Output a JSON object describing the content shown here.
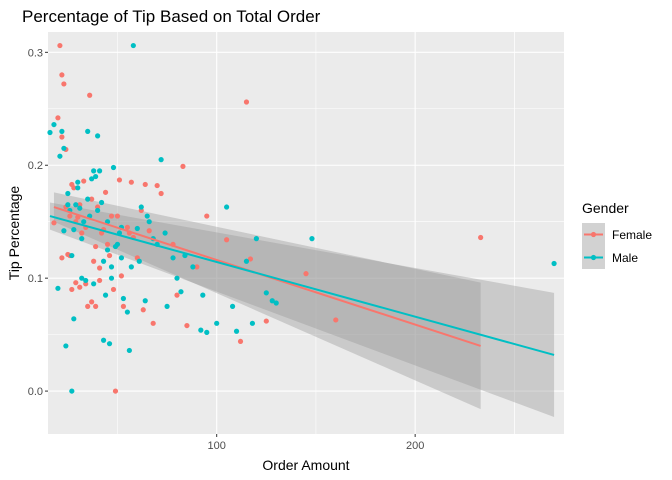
{
  "chart_data": {
    "type": "scatter",
    "title": "Percentage of Tip Based on Total Order",
    "xlabel": "Order Amount",
    "ylabel": "Tip Percentage",
    "xlim": [
      15,
      275
    ],
    "ylim": [
      -0.038,
      0.318
    ],
    "x_ticks": [
      100,
      200
    ],
    "y_ticks": [
      0.0,
      0.1,
      0.2,
      0.3
    ],
    "y_tick_labels": [
      "0.0",
      "0.1",
      "0.2",
      "0.3"
    ],
    "grid": true,
    "legend": {
      "title": "Gender",
      "placement": "right"
    },
    "colors": {
      "Female": "#F8766D",
      "Male": "#00BFC4",
      "panel": "#EBEBEB",
      "grid": "#FFFFFF",
      "band": "#999999"
    },
    "series": [
      {
        "name": "Female",
        "color": "#F8766D",
        "x": [
          18,
          20,
          21,
          22,
          22,
          23,
          24,
          25,
          26,
          27,
          27,
          28,
          29,
          30,
          31,
          32,
          33,
          34,
          35,
          36,
          37,
          38,
          39,
          40,
          41,
          42,
          44,
          45,
          46,
          47,
          48,
          50,
          52,
          53,
          55,
          57,
          58,
          60,
          62,
          64,
          66,
          68,
          72,
          78,
          83,
          85,
          95,
          105,
          112,
          115,
          117,
          125,
          145,
          160,
          233,
          22,
          24,
          26,
          29,
          31,
          34,
          37,
          39,
          41,
          43,
          49,
          51,
          56,
          63,
          70,
          80,
          90
        ],
        "y": [
          0.149,
          0.242,
          0.306,
          0.118,
          0.28,
          0.272,
          0.214,
          0.121,
          0.155,
          0.183,
          0.09,
          0.18,
          0.096,
          0.154,
          0.092,
          0.14,
          0.186,
          0.095,
          0.075,
          0.262,
          0.079,
          0.115,
          0.128,
          0.163,
          0.098,
          0.14,
          0.176,
          0.13,
          0.12,
          0.155,
          0.09,
          0.155,
          0.102,
          0.075,
          0.145,
          0.185,
          0.136,
          0.118,
          0.16,
          0.183,
          0.142,
          0.06,
          0.175,
          0.13,
          0.199,
          0.058,
          0.155,
          0.134,
          0.044,
          0.256,
          0.117,
          0.062,
          0.104,
          0.063,
          0.136,
          0.225,
          0.163,
          0.12,
          0.15,
          0.165,
          0.145,
          0.17,
          0.075,
          0.109,
          0.143,
          0.0,
          0.187,
          0.14,
          0.072,
          0.182,
          0.085,
          0.11
        ],
        "fit": {
          "x": [
            18,
            233
          ],
          "y": [
            0.163,
            0.04
          ],
          "ci_upper": [
            0.176,
            0.096
          ],
          "ci_lower": [
            0.15,
            -0.016
          ]
        }
      },
      {
        "name": "Male",
        "color": "#00BFC4",
        "x": [
          16,
          18,
          20,
          21,
          22,
          23,
          24,
          25,
          26,
          27,
          28,
          28,
          29,
          30,
          31,
          32,
          33,
          34,
          35,
          36,
          37,
          38,
          39,
          40,
          41,
          42,
          43,
          44,
          45,
          46,
          47,
          48,
          49,
          50,
          51,
          52,
          53,
          55,
          56,
          58,
          60,
          61,
          62,
          64,
          65,
          68,
          70,
          72,
          75,
          78,
          82,
          84,
          88,
          92,
          95,
          100,
          105,
          110,
          115,
          118,
          120,
          125,
          130,
          148,
          270,
          23,
          25,
          27,
          30,
          32,
          35,
          38,
          40,
          43,
          45,
          47,
          52,
          57,
          66,
          74,
          80,
          93,
          108,
          128
        ],
        "y": [
          0.229,
          0.236,
          0.091,
          0.208,
          0.23,
          0.142,
          0.04,
          0.175,
          0.16,
          0.0,
          0.064,
          0.143,
          0.165,
          0.185,
          0.162,
          0.135,
          0.15,
          0.098,
          0.23,
          0.155,
          0.188,
          0.195,
          0.19,
          0.226,
          0.195,
          0.167,
          0.045,
          0.085,
          0.15,
          0.042,
          0.11,
          0.198,
          0.128,
          0.13,
          0.14,
          0.118,
          0.082,
          0.07,
          0.036,
          0.306,
          0.144,
          0.115,
          0.163,
          0.08,
          0.155,
          0.135,
          0.13,
          0.205,
          0.075,
          0.118,
          0.088,
          0.12,
          0.11,
          0.054,
          0.052,
          0.06,
          0.163,
          0.053,
          0.115,
          0.06,
          0.135,
          0.087,
          0.078,
          0.135,
          0.113,
          0.215,
          0.165,
          0.12,
          0.18,
          0.1,
          0.17,
          0.095,
          0.16,
          0.115,
          0.125,
          0.1,
          0.145,
          0.11,
          0.15,
          0.14,
          0.1,
          0.085,
          0.075,
          0.08
        ],
        "fit": {
          "x": [
            16,
            270
          ],
          "y": [
            0.155,
            0.032
          ],
          "ci_upper": [
            0.167,
            0.087
          ],
          "ci_lower": [
            0.143,
            -0.023
          ]
        }
      }
    ]
  }
}
